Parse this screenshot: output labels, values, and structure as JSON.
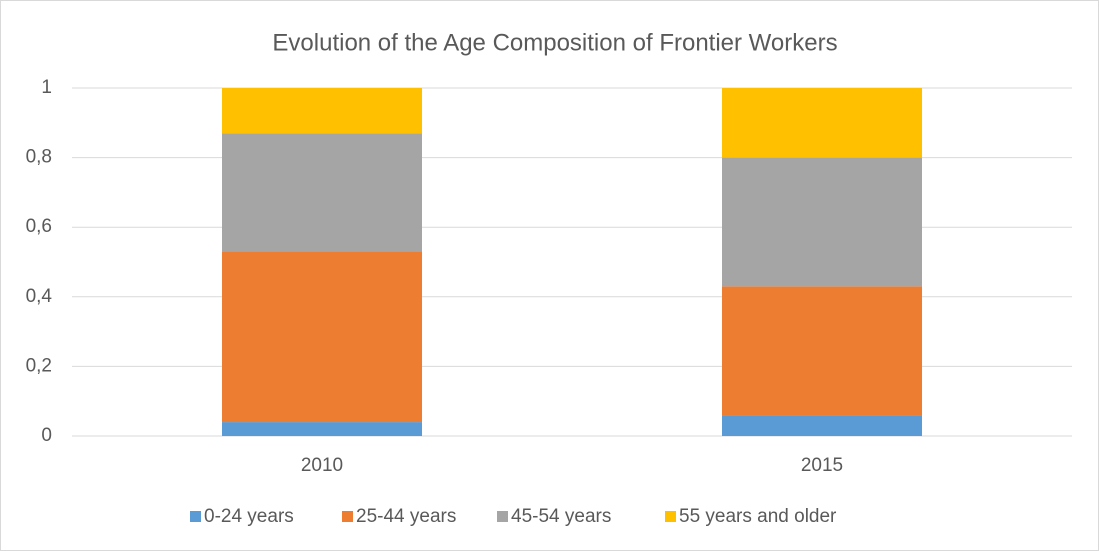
{
  "chart_data": {
    "type": "stacked_bar",
    "title": "Evolution of the Age Composition of Frontier Workers",
    "categories": [
      "2010",
      "2015"
    ],
    "series": [
      {
        "name": "0-24 years",
        "color": "#5b9bd5",
        "values": [
          0.04,
          0.06
        ]
      },
      {
        "name": "25-44 years",
        "color": "#ed7d31",
        "values": [
          0.49,
          0.37
        ]
      },
      {
        "name": "45-54 years",
        "color": "#a5a5a5",
        "values": [
          0.34,
          0.37
        ]
      },
      {
        "name": "55 years and older",
        "color": "#ffc000",
        "values": [
          0.13,
          0.2
        ]
      }
    ],
    "ylim": [
      0,
      1
    ],
    "yticks": [
      0,
      {
        "value": 0.2,
        "label": "0,2"
      },
      {
        "value": 0.4,
        "label": "0,4"
      },
      {
        "value": 0.6,
        "label": "0,6"
      },
      {
        "value": 0.8,
        "label": "0,8"
      },
      1
    ],
    "grid": true,
    "legend": "bottom"
  }
}
